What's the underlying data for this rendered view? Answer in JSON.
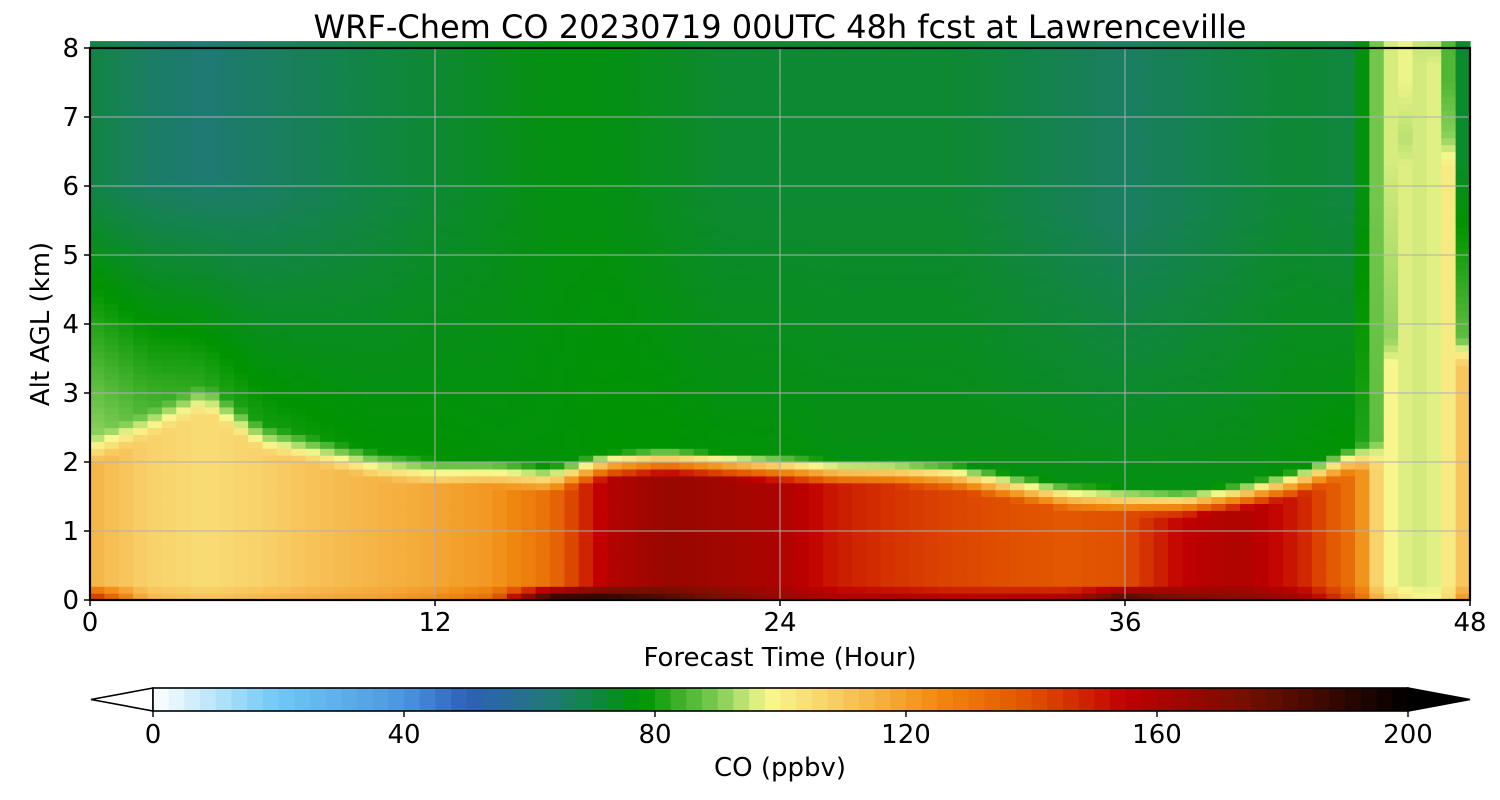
{
  "chart_data": {
    "type": "heatmap",
    "title": "WRF-Chem CO  20230719 00UTC 48h fcst at Lawrenceville",
    "xlabel": "Forecast Time (Hour)",
    "ylabel": "Alt AGL (km)",
    "xlim": [
      0,
      48
    ],
    "ylim": [
      0,
      8
    ],
    "x_ticks": [
      0,
      12,
      24,
      36,
      48
    ],
    "y_ticks": [
      0,
      1,
      2,
      3,
      4,
      5,
      6,
      7,
      8
    ],
    "grid": true,
    "x_hours": [
      0,
      2,
      4,
      6,
      8,
      10,
      12,
      14,
      16,
      18,
      20,
      22,
      24,
      26,
      28,
      30,
      32,
      34,
      36,
      38,
      40,
      42,
      44,
      45,
      46,
      47,
      48
    ],
    "boundary_layer_top_km": [
      2.2,
      2.6,
      3.0,
      2.4,
      2.2,
      2.0,
      1.9,
      1.9,
      1.8,
      2.0,
      2.05,
      2.0,
      1.95,
      1.9,
      1.9,
      1.85,
      1.7,
      1.55,
      1.5,
      1.45,
      1.55,
      1.75,
      2.1,
      2.2,
      8.0,
      8.0,
      2.2
    ],
    "boundary_layer_co_ppbv": [
      115,
      108,
      105,
      108,
      112,
      115,
      118,
      122,
      132,
      158,
      165,
      163,
      160,
      150,
      145,
      142,
      140,
      138,
      140,
      155,
      160,
      150,
      130,
      100,
      95,
      97,
      115
    ],
    "surface_co_ppbv": [
      155,
      115,
      112,
      115,
      118,
      120,
      125,
      135,
      200,
      195,
      185,
      175,
      165,
      160,
      162,
      158,
      160,
      162,
      190,
      175,
      170,
      165,
      140,
      110,
      100,
      98,
      130
    ],
    "free_troposphere_co_ppbv": [
      92,
      85,
      82,
      80,
      79,
      78,
      78,
      77,
      77,
      78,
      78,
      77,
      77,
      76,
      76,
      76,
      76,
      76,
      76,
      76,
      76,
      77,
      78,
      90,
      95,
      93,
      85
    ],
    "upper_troposphere_co_ppbv": [
      70,
      66,
      64,
      66,
      68,
      70,
      72,
      74,
      76,
      76,
      74,
      72,
      72,
      72,
      72,
      72,
      70,
      68,
      66,
      68,
      70,
      72,
      70,
      95,
      98,
      92,
      66
    ],
    "colorbar": {
      "label": "CO  (ppbv)",
      "min": 0,
      "max": 200,
      "ticks": [
        0,
        40,
        80,
        120,
        160,
        200
      ],
      "extend": "both",
      "color_stops": [
        {
          "value": 0,
          "color": "#ffffff"
        },
        {
          "value": 20,
          "color": "#6ec8f5"
        },
        {
          "value": 40,
          "color": "#4b96e0"
        },
        {
          "value": 50,
          "color": "#2f5fb8"
        },
        {
          "value": 64,
          "color": "#1f7a74"
        },
        {
          "value": 78,
          "color": "#009400"
        },
        {
          "value": 90,
          "color": "#7fcc55"
        },
        {
          "value": 98,
          "color": "#f8f890"
        },
        {
          "value": 110,
          "color": "#f8c860"
        },
        {
          "value": 125,
          "color": "#f08a10"
        },
        {
          "value": 140,
          "color": "#e05000"
        },
        {
          "value": 155,
          "color": "#c00000"
        },
        {
          "value": 175,
          "color": "#701000"
        },
        {
          "value": 200,
          "color": "#000000"
        }
      ]
    }
  }
}
